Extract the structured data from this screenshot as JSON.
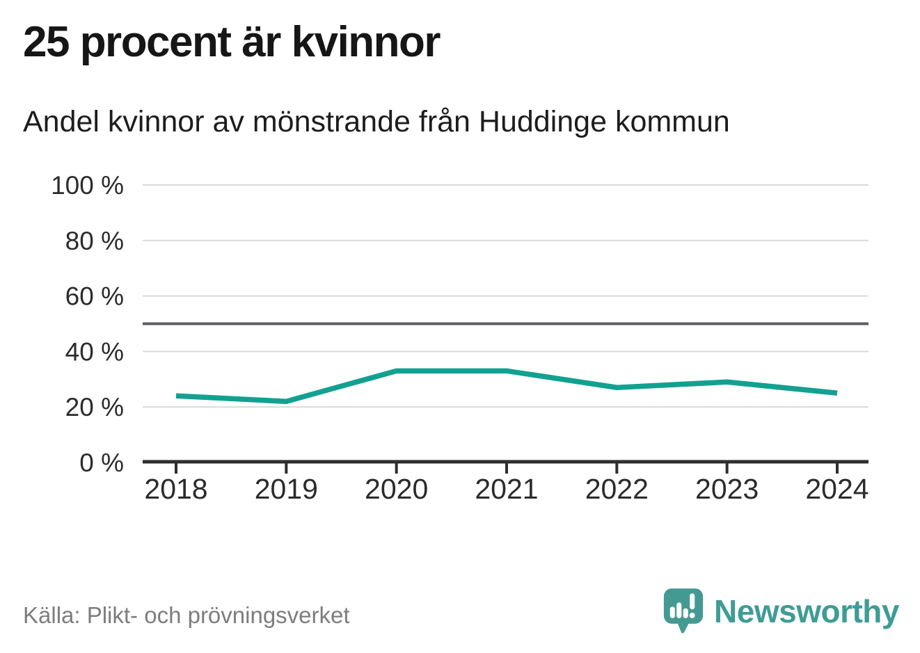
{
  "header": {
    "title": "25 procent är kvinnor",
    "subtitle": "Andel kvinnor av mönstrande från Huddinge kommun"
  },
  "footer": {
    "source": "Källa: Plikt- och prövningsverket",
    "brand": "Newsworthy"
  },
  "colors": {
    "line": "#12a191",
    "grid": "#d9d9d9",
    "reference_line": "#5c5d64",
    "axis": "#2e2e2e",
    "tick_label": "#2b2b2b",
    "title_text": "#161616",
    "source_text": "#7d7d7d",
    "brand_teal": "#449a93"
  },
  "chart_data": {
    "type": "line",
    "x": [
      2018,
      2019,
      2020,
      2021,
      2022,
      2023,
      2024
    ],
    "series": [
      {
        "name": "Andel kvinnor av mönstrande",
        "values": [
          24,
          22,
          33,
          33,
          27,
          29,
          25
        ]
      }
    ],
    "title": "25 procent är kvinnor",
    "subtitle": "Andel kvinnor av mönstrande från Huddinge kommun",
    "xlabel": "",
    "ylabel": "",
    "ylim": [
      0,
      100
    ],
    "yticks": [
      0,
      20,
      40,
      60,
      80,
      100
    ],
    "ytick_suffix": " %",
    "reference_line": 50,
    "grid": "horizontal",
    "legend": "none",
    "source": "Källa: Plikt- och prövningsverket"
  }
}
